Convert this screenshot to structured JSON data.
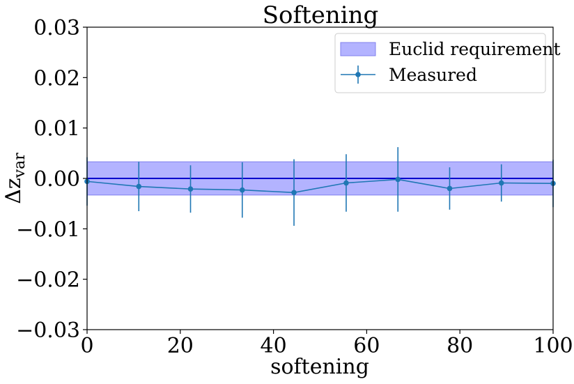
{
  "chart_data": {
    "type": "line",
    "title": "Softening",
    "xlabel": "softening",
    "ylabel": "Δz",
    "ylabel_subscript": "var",
    "xlim": [
      0,
      100
    ],
    "ylim": [
      -0.03,
      0.03
    ],
    "x_ticks": [
      0,
      20,
      40,
      60,
      80,
      100
    ],
    "x_tick_labels": [
      "0",
      "20",
      "40",
      "60",
      "80",
      "100"
    ],
    "y_ticks": [
      -0.03,
      -0.02,
      -0.01,
      0.0,
      0.01,
      0.02,
      0.03
    ],
    "y_tick_labels": [
      "−0.03",
      "−0.02",
      "−0.01",
      "0.00",
      "0.01",
      "0.02",
      "0.03"
    ],
    "grid": false,
    "legend_position": "top-right",
    "band": {
      "name": "Euclid requirement",
      "ymin": -0.0033,
      "ymax": 0.0033,
      "fill": "#b3b3ff",
      "edge": "#8080ee"
    },
    "reference_line": {
      "y": 0.0,
      "color": "#0000cc"
    },
    "series": [
      {
        "name": "Measured",
        "color": "#1f77b4",
        "x": [
          0,
          11.1,
          22.2,
          33.3,
          44.4,
          55.6,
          66.7,
          77.8,
          88.9,
          100
        ],
        "y": [
          -0.0006,
          -0.0016,
          -0.0021,
          -0.0023,
          -0.0028,
          -0.0009,
          -0.0002,
          -0.002,
          -0.0009,
          -0.001
        ],
        "yerr": [
          0.0048,
          0.0049,
          0.0047,
          0.0055,
          0.0066,
          0.0057,
          0.0064,
          0.0042,
          0.0037,
          0.0047
        ]
      }
    ]
  }
}
